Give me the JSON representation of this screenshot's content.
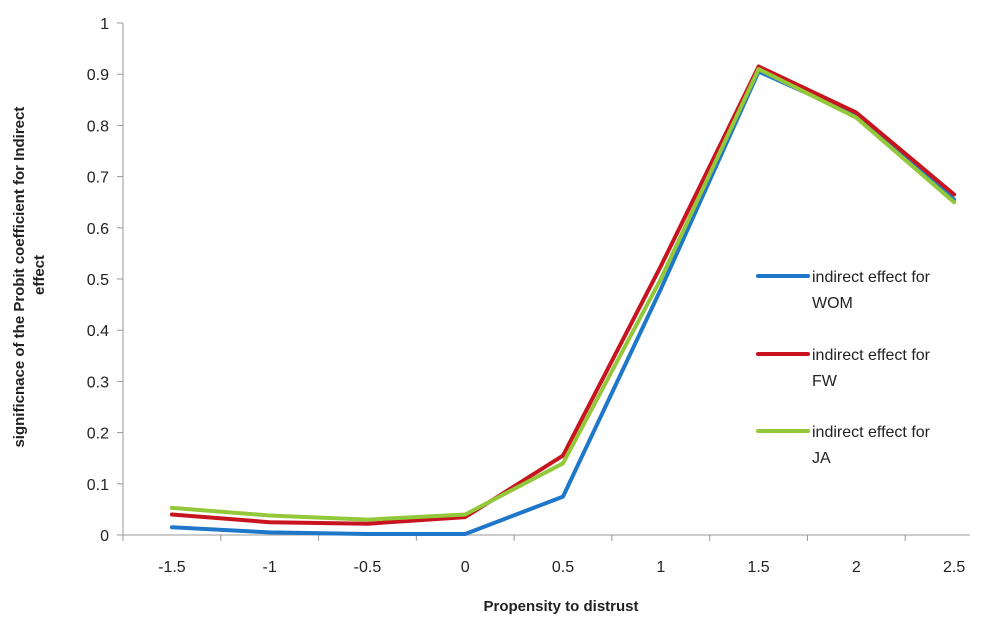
{
  "chart_data": {
    "type": "line",
    "title": "",
    "xlabel": "Propensity to distrust",
    "ylabel": "significnace of the Probit coefficient for Indirect effect",
    "ylabel_lines": [
      "significnace of the Probit coefficient for Indirect",
      "effect"
    ],
    "x": [
      -1.5,
      -1,
      -0.5,
      0,
      0.5,
      1,
      1.5,
      2,
      2.5
    ],
    "x_tick_labels": [
      "-1.5",
      "-1",
      "-0.5",
      "0",
      "0.5",
      "1",
      "1.5",
      "2",
      "2.5"
    ],
    "xlim": [
      -1.75,
      2.75
    ],
    "ylim": [
      0,
      1
    ],
    "y_ticks": [
      0,
      0.1,
      0.2,
      0.3,
      0.4,
      0.5,
      0.6,
      0.7,
      0.8,
      0.9,
      1
    ],
    "y_tick_labels": [
      "0",
      "0.1",
      "0.2",
      "0.3",
      "0.4",
      "0.5",
      "0.6",
      "0.7",
      "0.8",
      "0.9",
      "1"
    ],
    "grid": false,
    "legend_position": "right",
    "series": [
      {
        "name": "indirect effect for WOM",
        "name_lines": [
          "indirect effect for",
          "WOM"
        ],
        "color": "#1f77c9",
        "values": [
          0.015,
          0.005,
          0.002,
          0.002,
          0.075,
          0.48,
          0.905,
          0.82,
          0.655
        ]
      },
      {
        "name": "indirect effect for FW",
        "name_lines": [
          "indirect effect for",
          "FW"
        ],
        "color": "#c8141e",
        "values": [
          0.04,
          0.025,
          0.022,
          0.035,
          0.155,
          0.525,
          0.915,
          0.825,
          0.665
        ]
      },
      {
        "name": "indirect effect for JA",
        "name_lines": [
          "indirect effect for",
          "JA"
        ],
        "color": "#93c83a",
        "values": [
          0.053,
          0.038,
          0.03,
          0.04,
          0.14,
          0.5,
          0.91,
          0.815,
          0.65
        ]
      }
    ]
  }
}
